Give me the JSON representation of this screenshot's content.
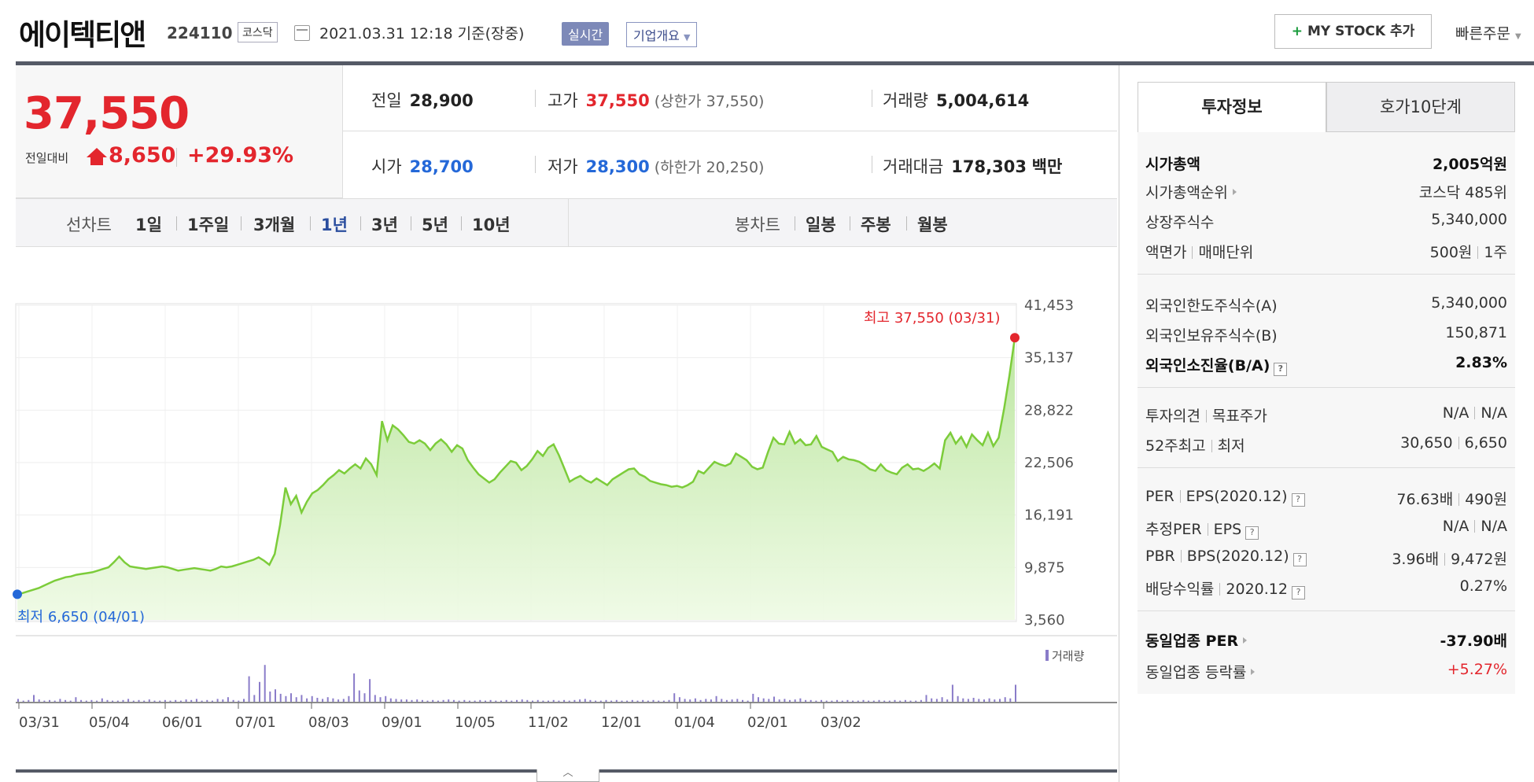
{
  "header": {
    "name": "에이텍티앤",
    "code": "224110",
    "market": "코스닥",
    "datetime": "2021.03.31 12:18 기준(장중)",
    "realtime": "실시간",
    "overview": "기업개요",
    "mystock": "MY STOCK 추가",
    "quick_order": "빠른주문"
  },
  "price": {
    "current": "37,550",
    "change_label": "전일대비",
    "change_amount": "8,650",
    "change_pct": "+29.93%",
    "prev_close_label": "전일",
    "prev_close": "28,900",
    "high_label": "고가",
    "high": "37,550",
    "upper_limit": "(상한가 37,550)",
    "volume_label": "거래량",
    "volume": "5,004,614",
    "open_label": "시가",
    "open": "28,700",
    "low_label": "저가",
    "low": "28,300",
    "lower_limit": "(하한가 20,250)",
    "amount_label": "거래대금",
    "amount": "178,303",
    "amount_unit": "백만"
  },
  "periods": {
    "line_label": "선차트",
    "line_items": [
      "1일",
      "1주일",
      "3개월",
      "1년",
      "3년",
      "5년",
      "10년"
    ],
    "active": "1년",
    "candle_label": "봉차트",
    "candle_items": [
      "일봉",
      "주봉",
      "월봉"
    ]
  },
  "chart_data": {
    "type": "area",
    "ylim": [
      3560,
      41453
    ],
    "yticks": [
      "41,453",
      "35,137",
      "28,822",
      "22,506",
      "16,191",
      "9,875",
      "3,560"
    ],
    "xticks": [
      "03/31",
      "05/04",
      "06/01",
      "07/01",
      "08/03",
      "09/01",
      "10/05",
      "11/02",
      "12/01",
      "01/04",
      "02/01",
      "03/02"
    ],
    "max_label": "최고 37,550 (03/31)",
    "min_label": "최저 6,650 (04/01)",
    "volume_legend": "거래량",
    "values": [
      6650,
      6800,
      7000,
      7200,
      7400,
      7700,
      8000,
      8300,
      8500,
      8700,
      8800,
      9000,
      9100,
      9200,
      9300,
      9500,
      9700,
      9900,
      10500,
      11200,
      10500,
      10000,
      9900,
      9800,
      9700,
      9800,
      9900,
      10000,
      9900,
      9700,
      9500,
      9600,
      9700,
      9800,
      9700,
      9600,
      9500,
      9700,
      10000,
      9900,
      10000,
      10200,
      10400,
      10600,
      10800,
      11100,
      10700,
      10200,
      11500,
      15000,
      19500,
      17500,
      18500,
      16500,
      17800,
      18800,
      19200,
      19800,
      20500,
      21000,
      21600,
      21200,
      21800,
      22300,
      21800,
      23000,
      22300,
      21000,
      27500,
      25200,
      27000,
      26500,
      25800,
      25000,
      24800,
      25200,
      24800,
      24000,
      24800,
      25300,
      24700,
      23800,
      24600,
      24200,
      22800,
      21900,
      21100,
      20600,
      20100,
      20500,
      21300,
      22000,
      22700,
      22500,
      21600,
      22100,
      22900,
      23900,
      23300,
      24300,
      24700,
      23400,
      21800,
      20200,
      20600,
      20900,
      20400,
      20100,
      20600,
      20200,
      19800,
      20500,
      20900,
      21300,
      21700,
      21800,
      21100,
      20800,
      20300,
      20100,
      19900,
      19800,
      19600,
      19700,
      19500,
      19800,
      20200,
      21500,
      21200,
      21900,
      22600,
      22300,
      22100,
      22400,
      23600,
      23200,
      22800,
      22000,
      21700,
      21900,
      23800,
      25500,
      24800,
      24700,
      26200,
      24800,
      25300,
      24600,
      24700,
      25700,
      24400,
      24100,
      23800,
      22700,
      23200,
      22900,
      22800,
      22600,
      22200,
      21700,
      21500,
      22300,
      21600,
      21300,
      21100,
      21900,
      22300,
      21700,
      21800,
      21500,
      21900,
      22400,
      21800,
      25200,
      26100,
      24800,
      25600,
      24400,
      25900,
      25200,
      24600,
      26100,
      24500,
      25500,
      29000,
      33000,
      37550
    ],
    "volume_bars": [
      0.05,
      0.02,
      0.03,
      0.12,
      0.04,
      0.02,
      0.03,
      0.02,
      0.05,
      0.03,
      0.02,
      0.08,
      0.03,
      0.02,
      0.03,
      0.02,
      0.06,
      0.03,
      0.02,
      0.02,
      0.03,
      0.05,
      0.02,
      0.03,
      0.02,
      0.04,
      0.02,
      0.02,
      0.03,
      0.02,
      0.03,
      0.02,
      0.04,
      0.03,
      0.05,
      0.02,
      0.03,
      0.02,
      0.05,
      0.04,
      0.08,
      0.03,
      0.02,
      0.05,
      0.45,
      0.12,
      0.35,
      0.65,
      0.18,
      0.22,
      0.14,
      0.1,
      0.15,
      0.08,
      0.12,
      0.06,
      0.1,
      0.07,
      0.05,
      0.08,
      0.06,
      0.04,
      0.05,
      0.1,
      0.5,
      0.2,
      0.15,
      0.4,
      0.12,
      0.08,
      0.1,
      0.06,
      0.05,
      0.04,
      0.04,
      0.03,
      0.04,
      0.03,
      0.02,
      0.03,
      0.02,
      0.03,
      0.04,
      0.03,
      0.02,
      0.03,
      0.02,
      0.02,
      0.03,
      0.02,
      0.03,
      0.02,
      0.02,
      0.03,
      0.02,
      0.03,
      0.04,
      0.03,
      0.02,
      0.03,
      0.02,
      0.02,
      0.03,
      0.02,
      0.03,
      0.02,
      0.03,
      0.04,
      0.05,
      0.03,
      0.02,
      0.02,
      0.03,
      0.02,
      0.03,
      0.02,
      0.02,
      0.03,
      0.02,
      0.03,
      0.02,
      0.03,
      0.02,
      0.02,
      0.03,
      0.15,
      0.08,
      0.05,
      0.04,
      0.06,
      0.03,
      0.05,
      0.04,
      0.1,
      0.05,
      0.03,
      0.04,
      0.05,
      0.03,
      0.02,
      0.14,
      0.08,
      0.06,
      0.05,
      0.09,
      0.04,
      0.05,
      0.03,
      0.04,
      0.06,
      0.03,
      0.03,
      0.02,
      0.03,
      0.02,
      0.02,
      0.03,
      0.02,
      0.03,
      0.02,
      0.02,
      0.03,
      0.02,
      0.02,
      0.03,
      0.02,
      0.02,
      0.03,
      0.02,
      0.03,
      0.02,
      0.02,
      0.03,
      0.12,
      0.06,
      0.05,
      0.08,
      0.04,
      0.3,
      0.1,
      0.06,
      0.05,
      0.07,
      0.05,
      0.04,
      0.06,
      0.04,
      0.05,
      0.08,
      0.06,
      0.3
    ]
  },
  "tabs": {
    "invest": "투자정보",
    "hoga": "호가10단계"
  },
  "info": {
    "mcap_label": "시가총액",
    "mcap": "2,005억원",
    "mcap_rank_label": "시가총액순위",
    "mcap_rank": "코스닥 485위",
    "shares_label": "상장주식수",
    "shares": "5,340,000",
    "par_label": "액면가",
    "unit_label": "매매단위",
    "par": "500원",
    "unit": "1주",
    "foreign_limit_label": "외국인한도주식수(A)",
    "foreign_limit": "5,340,000",
    "foreign_hold_label": "외국인보유주식수(B)",
    "foreign_hold": "150,871",
    "foreign_ratio_label": "외국인소진율(B/A)",
    "foreign_ratio": "2.83%",
    "opinion_label": "투자의견",
    "target_label": "목표주가",
    "opinion": "N/A",
    "target": "N/A",
    "w52_high_label": "52주최고",
    "w52_low_label": "최저",
    "w52_high": "30,650",
    "w52_low": "6,650",
    "per_label": "PER",
    "eps_label": "EPS(2020.12)",
    "per": "76.63배",
    "eps": "490원",
    "est_per_label": "추정PER",
    "est_eps_label": "EPS",
    "est_per": "N/A",
    "est_eps": "N/A",
    "pbr_label": "PBR",
    "bps_label": "BPS(2020.12)",
    "pbr": "3.96배",
    "bps": "9,472원",
    "div_label": "배당수익률",
    "div_year": "2020.12",
    "div": "0.27%",
    "sector_per_label": "동일업종 PER",
    "sector_per": "-37.90배",
    "sector_chg_label": "동일업종 등락률",
    "sector_chg": "+5.27%"
  }
}
